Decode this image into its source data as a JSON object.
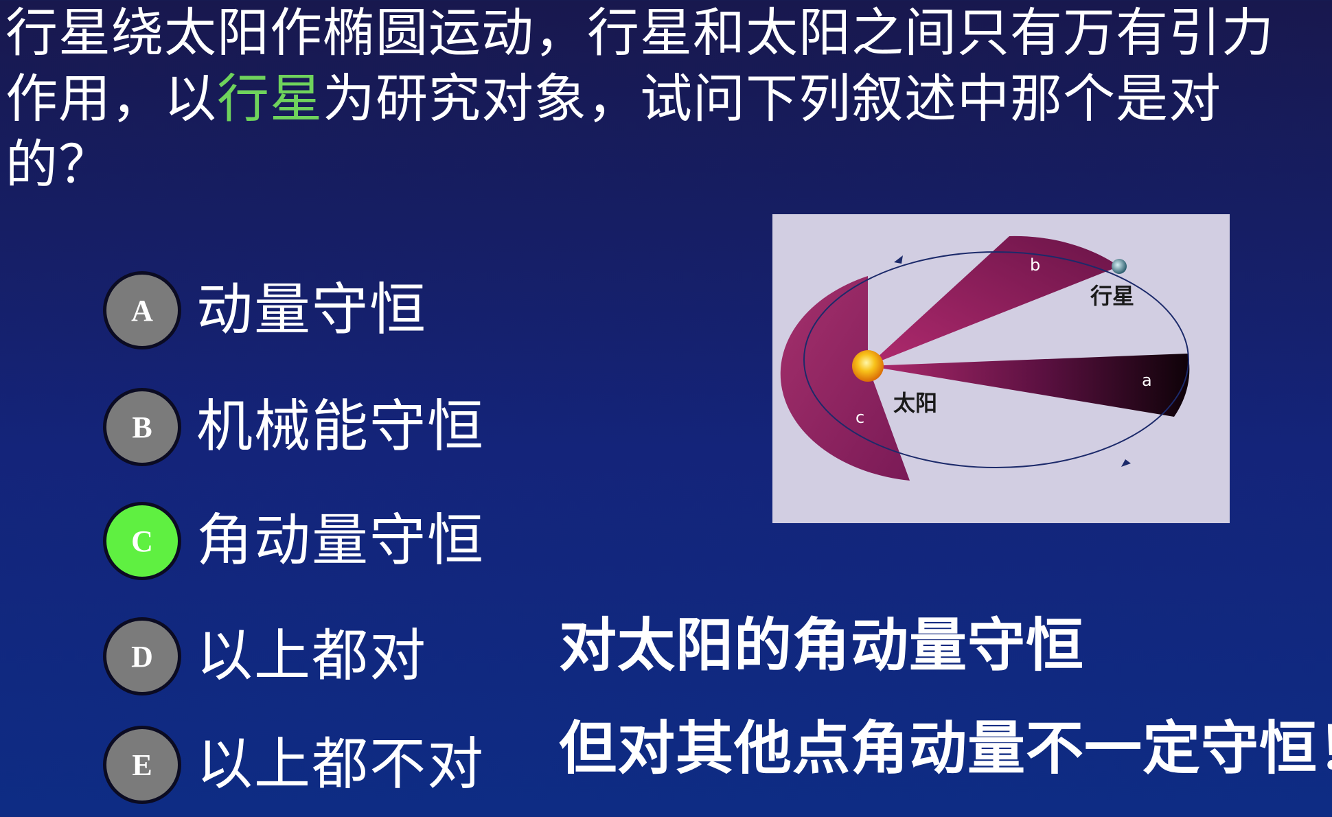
{
  "question": {
    "part1": "行星绕太阳作椭圆运动，行星和太阳之间只有万有引力作用，以",
    "highlight": "行星",
    "part2": "为研究对象，试问下列叙述中那个是对的？",
    "highlight_color": "#6fd35c"
  },
  "options": [
    {
      "letter": "A",
      "text": "动量守恒"
    },
    {
      "letter": "B",
      "text": "机械能守恒"
    },
    {
      "letter": "C",
      "text": "角动量守恒",
      "correct": true
    },
    {
      "letter": "D",
      "text": "以上都对"
    },
    {
      "letter": "E",
      "text": "以上都不对"
    }
  ],
  "figure": {
    "sector_labels": [
      "b",
      "a",
      "c"
    ],
    "planet_label": "行星",
    "sun_label": "太阳",
    "colors": {
      "background": "#d2cee2",
      "sector": "#8a1c5c",
      "sun": "#f6b012"
    }
  },
  "answer": {
    "line1": "对太阳的角动量守恒",
    "line2": "但对其他点角动量不一定守恒！"
  },
  "colors": {
    "background_top": "#18184e",
    "background_bottom": "#0e2c84",
    "badge_default": "#7b7b7b",
    "badge_correct": "#5ff041"
  }
}
